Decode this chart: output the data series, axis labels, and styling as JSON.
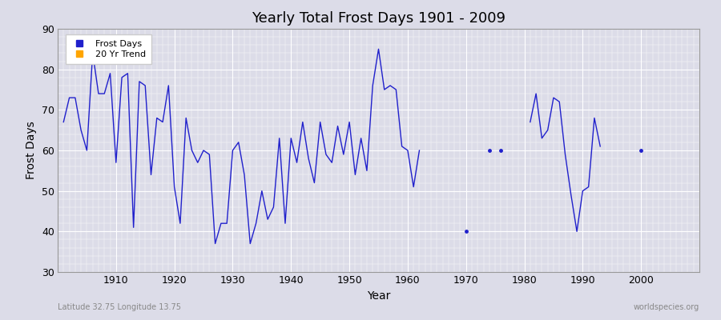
{
  "title": "Yearly Total Frost Days 1901 - 2009",
  "xlabel": "Year",
  "ylabel": "Frost Days",
  "xlim": [
    1900,
    2010
  ],
  "ylim": [
    30,
    90
  ],
  "yticks": [
    30,
    40,
    50,
    60,
    70,
    80,
    90
  ],
  "xticks": [
    1910,
    1920,
    1930,
    1940,
    1950,
    1960,
    1970,
    1980,
    1990,
    2000
  ],
  "bg_color": "#dcdce8",
  "plot_bg_color": "#dcdce8",
  "line_color": "#2020cc",
  "grid_color": "#ffffff",
  "watermark": "worldspecies.org",
  "lat_lon_label": "Latitude 32.75 Longitude 13.75",
  "legend_entries": [
    "Frost Days",
    "20 Yr Trend"
  ],
  "legend_colors": [
    "#2020cc",
    "#ffa500"
  ],
  "years": [
    1901,
    1902,
    1903,
    1904,
    1905,
    1906,
    1907,
    1908,
    1909,
    1910,
    1911,
    1912,
    1913,
    1914,
    1915,
    1916,
    1917,
    1918,
    1919,
    1920,
    1921,
    1922,
    1923,
    1924,
    1925,
    1926,
    1927,
    1928,
    1929,
    1930,
    1931,
    1932,
    1933,
    1934,
    1935,
    1936,
    1937,
    1938,
    1939,
    1940,
    1941,
    1942,
    1943,
    1944,
    1945,
    1946,
    1947,
    1948,
    1949,
    1950,
    1951,
    1952,
    1953,
    1954,
    1955,
    1956,
    1957,
    1958,
    1959,
    1960,
    1961,
    1962,
    1963,
    1964,
    1965,
    1966,
    1967,
    1968,
    1969,
    1970,
    1971,
    1972,
    1973,
    1974,
    1975,
    1976,
    1977,
    1978,
    1979,
    1980,
    1981,
    1982,
    1983,
    1984,
    1985,
    1986,
    1987,
    1988,
    1989,
    1990,
    1991,
    1992,
    1993,
    1994,
    1995,
    1996,
    1997,
    1998,
    1999,
    2000,
    2001,
    2002,
    2003,
    2004,
    2005,
    2006,
    2007,
    2008,
    2009
  ],
  "values": [
    67,
    73,
    73,
    65,
    60,
    84,
    74,
    74,
    79,
    57,
    78,
    79,
    41,
    77,
    76,
    54,
    68,
    67,
    76,
    51,
    42,
    68,
    60,
    57,
    60,
    59,
    37,
    42,
    42,
    60,
    62,
    54,
    37,
    42,
    50,
    43,
    46,
    63,
    42,
    63,
    57,
    67,
    58,
    52,
    67,
    59,
    57,
    66,
    59,
    67,
    54,
    63,
    55,
    76,
    85,
    75,
    76,
    75,
    61,
    60,
    51,
    60,
    null,
    null,
    null,
    null,
    null,
    null,
    null,
    40,
    null,
    null,
    null,
    60,
    null,
    60,
    null,
    null,
    null,
    null,
    67,
    74,
    63,
    65,
    73,
    72,
    59,
    49,
    40,
    50,
    51,
    68,
    61,
    null,
    null,
    null,
    null,
    null,
    null,
    60,
    null,
    null,
    null,
    null,
    null,
    null,
    null,
    null,
    null
  ]
}
